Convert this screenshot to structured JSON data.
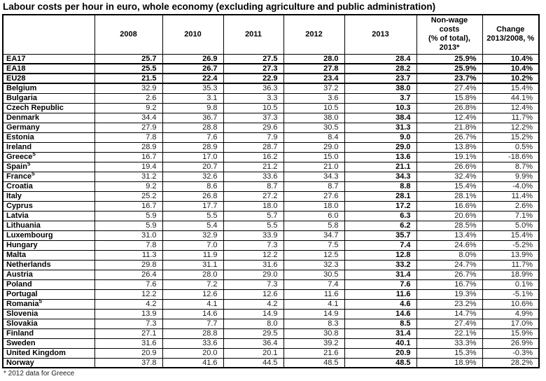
{
  "title": "Labour costs per hour in euro, whole economy (excluding agriculture and public administration)",
  "footnote": "* 2012 data for Greece",
  "chart_data": {
    "type": "table",
    "title": "Labour costs per hour in euro, whole economy (excluding agriculture and public administration)",
    "year_headers": [
      "2008",
      "2010",
      "2011",
      "2012",
      "2013"
    ],
    "nonwage_header": "Non-wage\ncosts\n(% of total),\n2013*",
    "change_header": "Change\n2013/2008, %",
    "rows": [
      {
        "name": "EA17",
        "sup": "",
        "bold": true,
        "values": [
          "25.7",
          "26.9",
          "27.5",
          "28.0",
          "28.4"
        ],
        "nonwage": "25.9%",
        "change": "10.4%"
      },
      {
        "name": "EA18",
        "sup": "",
        "bold": true,
        "values": [
          "25.5",
          "26.7",
          "27.3",
          "27.8",
          "28.2"
        ],
        "nonwage": "25.9%",
        "change": "10.4%"
      },
      {
        "name": "EU28",
        "sup": "",
        "bold": true,
        "values": [
          "21.5",
          "22.4",
          "22.9",
          "23.4",
          "23.7"
        ],
        "nonwage": "23.7%",
        "change": "10.2%"
      },
      {
        "name": "Belgium",
        "sup": "",
        "bold": false,
        "values": [
          "32.9",
          "35.3",
          "36.3",
          "37.2",
          "38.0"
        ],
        "nonwage": "27.4%",
        "change": "15.4%"
      },
      {
        "name": "Bulgaria",
        "sup": "",
        "bold": false,
        "values": [
          "2.6",
          "3.1",
          "3.3",
          "3.6",
          "3.7"
        ],
        "nonwage": "15.8%",
        "change": "44.1%"
      },
      {
        "name": "Czech Republic",
        "sup": "",
        "bold": false,
        "values": [
          "9.2",
          "9.8",
          "10.5",
          "10.5",
          "10.3"
        ],
        "nonwage": "26.8%",
        "change": "12.4%"
      },
      {
        "name": "Denmark",
        "sup": "",
        "bold": false,
        "values": [
          "34.4",
          "36.7",
          "37.3",
          "38.0",
          "38.4"
        ],
        "nonwage": "12.4%",
        "change": "11.7%"
      },
      {
        "name": "Germany",
        "sup": "",
        "bold": false,
        "values": [
          "27.9",
          "28.8",
          "29.6",
          "30.5",
          "31.3"
        ],
        "nonwage": "21.8%",
        "change": "12.2%"
      },
      {
        "name": "Estonia",
        "sup": "",
        "bold": false,
        "values": [
          "7.8",
          "7.6",
          "7.9",
          "8.4",
          "9.0"
        ],
        "nonwage": "26.7%",
        "change": "15.2%"
      },
      {
        "name": "Ireland",
        "sup": "",
        "bold": false,
        "values": [
          "28.9",
          "28.9",
          "28.7",
          "29.0",
          "29.0"
        ],
        "nonwage": "13.8%",
        "change": "0.5%"
      },
      {
        "name": "Greece",
        "sup": "5",
        "bold": false,
        "values": [
          "16.7",
          "17.0",
          "16.2",
          "15.0",
          "13.6"
        ],
        "nonwage": "19.1%",
        "change": "-18.6%"
      },
      {
        "name": "Spain",
        "sup": "5",
        "bold": false,
        "values": [
          "19.4",
          "20.7",
          "21.2",
          "21.0",
          "21.1"
        ],
        "nonwage": "26.6%",
        "change": "8.7%"
      },
      {
        "name": "France",
        "sup": "5",
        "bold": false,
        "values": [
          "31.2",
          "32.6",
          "33.6",
          "34.3",
          "34.3"
        ],
        "nonwage": "32.4%",
        "change": "9.9%"
      },
      {
        "name": "Croatia",
        "sup": "",
        "bold": false,
        "values": [
          "9.2",
          "8.6",
          "8.7",
          "8.7",
          "8.8"
        ],
        "nonwage": "15.4%",
        "change": "-4.0%"
      },
      {
        "name": "Italy",
        "sup": "",
        "bold": false,
        "values": [
          "25.2",
          "26.8",
          "27.2",
          "27.6",
          "28.1"
        ],
        "nonwage": "28.1%",
        "change": "11.4%"
      },
      {
        "name": "Cyprus",
        "sup": "",
        "bold": false,
        "values": [
          "16.7",
          "17.7",
          "18.0",
          "18.0",
          "17.2"
        ],
        "nonwage": "16.6%",
        "change": "2.6%"
      },
      {
        "name": "Latvia",
        "sup": "",
        "bold": false,
        "values": [
          "5.9",
          "5.5",
          "5.7",
          "6.0",
          "6.3"
        ],
        "nonwage": "20.6%",
        "change": "7.1%"
      },
      {
        "name": "Lithuania",
        "sup": "",
        "bold": false,
        "values": [
          "5.9",
          "5.4",
          "5.5",
          "5.8",
          "6.2"
        ],
        "nonwage": "28.5%",
        "change": "5.0%"
      },
      {
        "name": "Luxembourg",
        "sup": "",
        "bold": false,
        "values": [
          "31.0",
          "32.9",
          "33.9",
          "34.7",
          "35.7"
        ],
        "nonwage": "13.4%",
        "change": "15.4%"
      },
      {
        "name": "Hungary",
        "sup": "",
        "bold": false,
        "values": [
          "7.8",
          "7.0",
          "7.3",
          "7.5",
          "7.4"
        ],
        "nonwage": "24.6%",
        "change": "-5.2%"
      },
      {
        "name": "Malta",
        "sup": "",
        "bold": false,
        "values": [
          "11.3",
          "11.9",
          "12.2",
          "12.5",
          "12.8"
        ],
        "nonwage": "8.0%",
        "change": "13.9%"
      },
      {
        "name": "Netherlands",
        "sup": "",
        "bold": false,
        "values": [
          "29.8",
          "31.1",
          "31.6",
          "32.3",
          "33.2"
        ],
        "nonwage": "24.7%",
        "change": "11.7%"
      },
      {
        "name": "Austria",
        "sup": "",
        "bold": false,
        "values": [
          "26.4",
          "28.0",
          "29.0",
          "30.5",
          "31.4"
        ],
        "nonwage": "26.7%",
        "change": "18.9%"
      },
      {
        "name": "Poland",
        "sup": "",
        "bold": false,
        "values": [
          "7.6",
          "7.2",
          "7.3",
          "7.4",
          "7.6"
        ],
        "nonwage": "16.7%",
        "change": "0.1%"
      },
      {
        "name": "Portugal",
        "sup": "",
        "bold": false,
        "values": [
          "12.2",
          "12.6",
          "12.6",
          "11.6",
          "11.6"
        ],
        "nonwage": "19.3%",
        "change": "-5.1%"
      },
      {
        "name": "Romania",
        "sup": "5",
        "bold": false,
        "values": [
          "4.2",
          "4.1",
          "4.2",
          "4.1",
          "4.6"
        ],
        "nonwage": "23.2%",
        "change": "10.6%"
      },
      {
        "name": "Slovenia",
        "sup": "",
        "bold": false,
        "values": [
          "13.9",
          "14.6",
          "14.9",
          "14.9",
          "14.6"
        ],
        "nonwage": "14.7%",
        "change": "4.9%"
      },
      {
        "name": "Slovakia",
        "sup": "",
        "bold": false,
        "values": [
          "7.3",
          "7.7",
          "8.0",
          "8.3",
          "8.5"
        ],
        "nonwage": "27.4%",
        "change": "17.0%"
      },
      {
        "name": "Finland",
        "sup": "",
        "bold": false,
        "values": [
          "27.1",
          "28.8",
          "29.5",
          "30.8",
          "31.4"
        ],
        "nonwage": "22.1%",
        "change": "15.9%"
      },
      {
        "name": "Sweden",
        "sup": "",
        "bold": false,
        "values": [
          "31.6",
          "33.6",
          "36.4",
          "39.2",
          "40.1"
        ],
        "nonwage": "33.3%",
        "change": "26.9%"
      },
      {
        "name": "United Kingdom",
        "sup": "",
        "bold": false,
        "values": [
          "20.9",
          "20.0",
          "20.1",
          "21.6",
          "20.9"
        ],
        "nonwage": "15.3%",
        "change": "-0.3%"
      },
      {
        "name": "Norway",
        "sup": "",
        "bold": false,
        "values": [
          "37.8",
          "41.6",
          "44.5",
          "48.5",
          "48.5"
        ],
        "nonwage": "18.9%",
        "change": "28.2%"
      }
    ]
  }
}
